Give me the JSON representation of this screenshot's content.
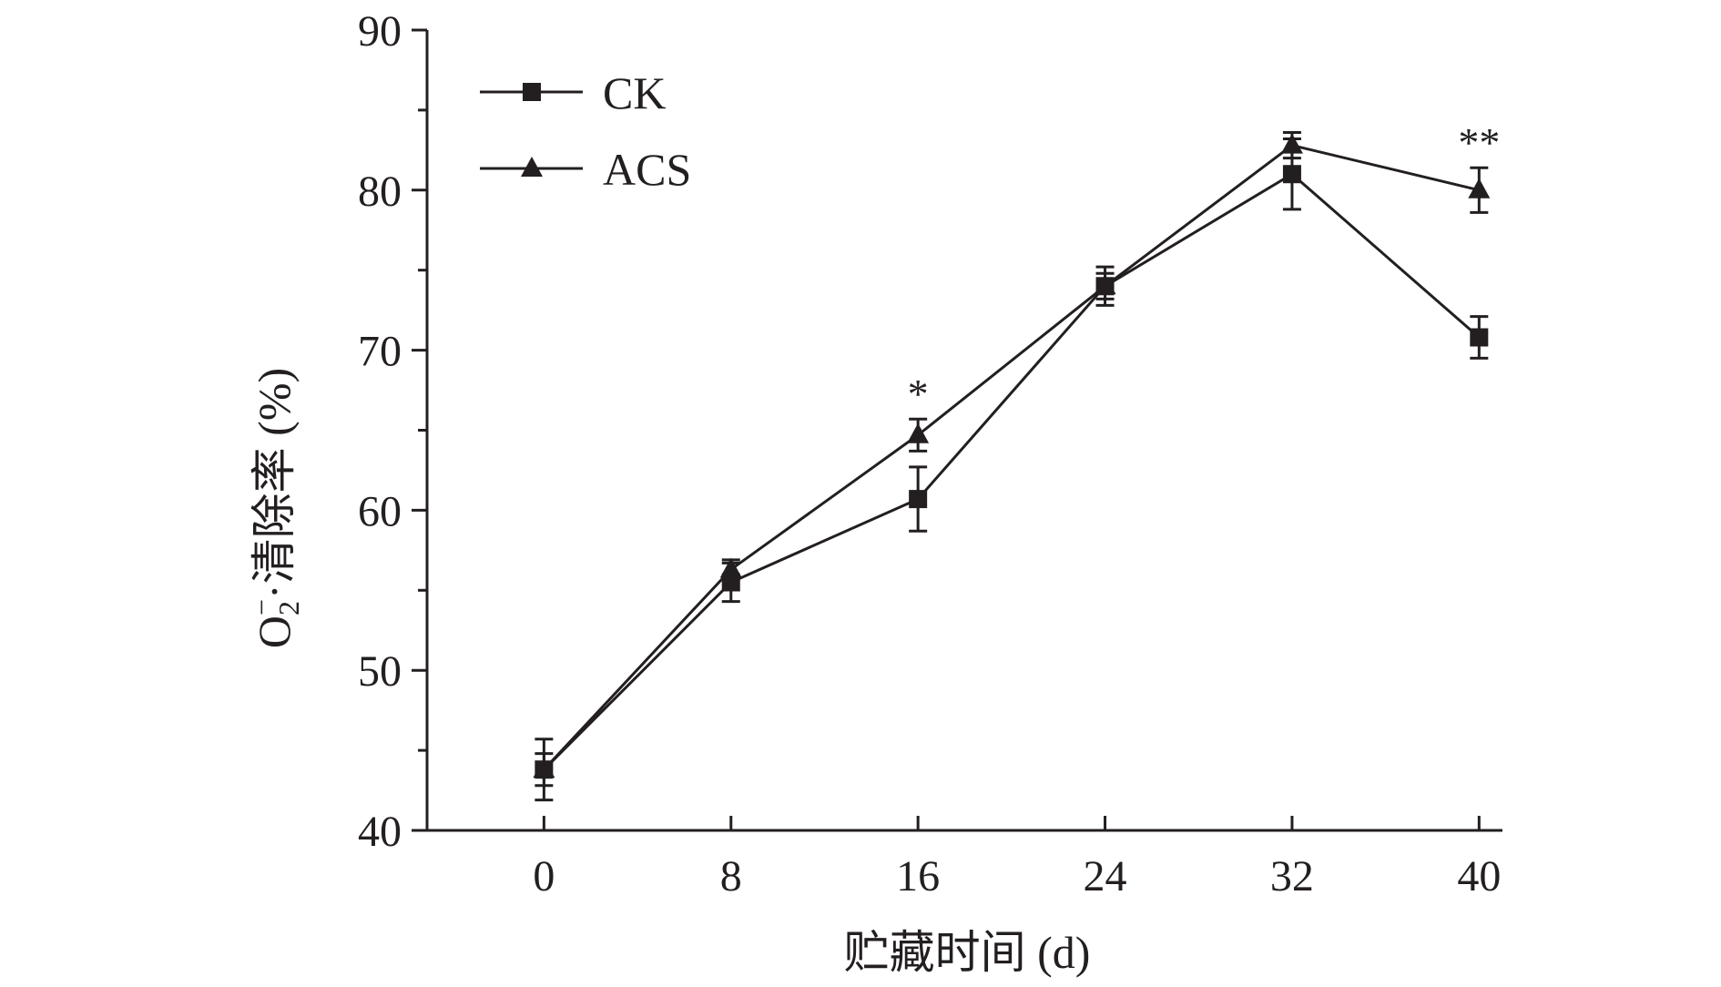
{
  "chart_data": {
    "type": "line",
    "x": [
      0,
      8,
      16,
      24,
      32,
      40
    ],
    "xlabel": "贮藏时间 (d)",
    "ylabel": "O2−·清除率 (%)",
    "ylabel_parts": {
      "base": "O",
      "sub": "2",
      "sup": "−",
      "rest": "·清除率 (%)"
    },
    "xlim": [
      -5,
      41
    ],
    "ylim": [
      40,
      90
    ],
    "xticks": [
      0,
      8,
      16,
      24,
      32,
      40
    ],
    "xtick_labels": [
      "0",
      "8",
      "16",
      "24",
      "32",
      "40"
    ],
    "yticks": [
      40,
      50,
      60,
      70,
      80,
      90
    ],
    "ytick_labels": [
      "40",
      "50",
      "60",
      "70",
      "80",
      "90"
    ],
    "legend_position": "top-left",
    "grid": false,
    "series": [
      {
        "name": "CK",
        "marker": "square",
        "values": [
          43.8,
          55.5,
          60.7,
          74.0,
          81.0,
          70.8
        ],
        "errors": [
          1.9,
          1.2,
          2.0,
          1.2,
          2.2,
          1.3
        ]
      },
      {
        "name": "ACS",
        "marker": "triangle",
        "values": [
          43.8,
          56.3,
          64.7,
          74.0,
          82.8,
          80.0
        ],
        "errors": [
          1.0,
          0.6,
          1.0,
          0.8,
          0.8,
          1.4
        ]
      }
    ],
    "annotations": [
      {
        "x": 16,
        "text": "*"
      },
      {
        "x": 40,
        "text": "**"
      }
    ]
  },
  "colors": {
    "ink": "#231f20",
    "background": "#ffffff"
  }
}
